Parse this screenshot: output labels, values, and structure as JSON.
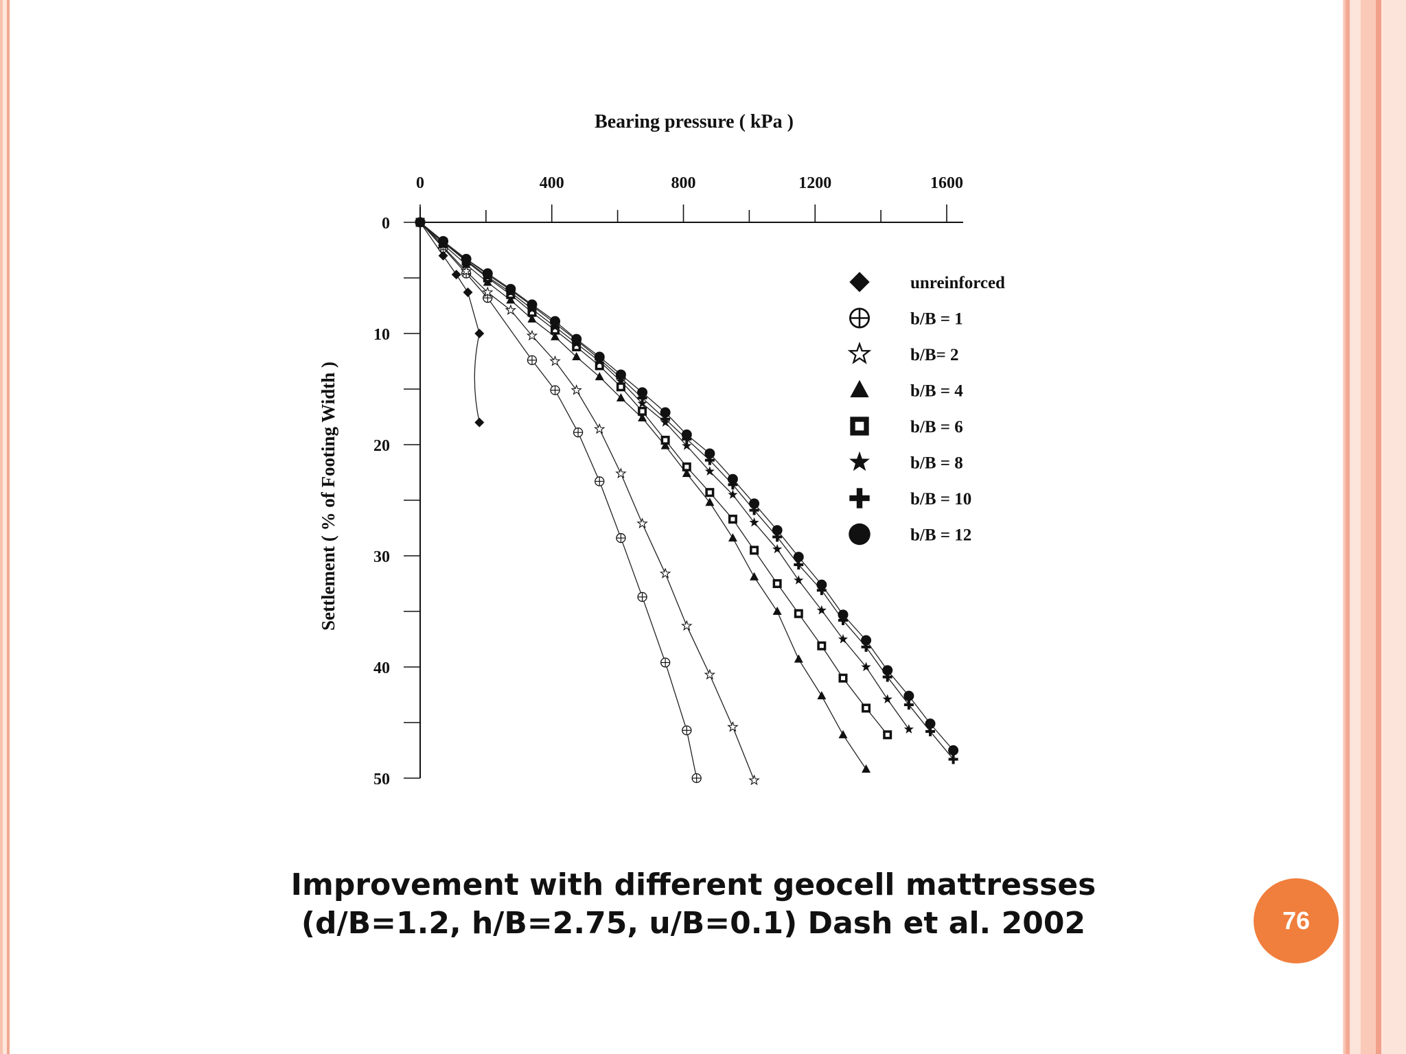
{
  "slide": {
    "page_number": "76"
  },
  "caption": {
    "line1": "Improvement with different geocell mattresses",
    "line2": "(d/B=1.2, h/B=2.75, u/B=0.1) Dash et al. 2002"
  },
  "colors": {
    "accent": "#f07e3c",
    "border": "#f4a892",
    "ink": "#111111"
  },
  "chart_data": {
    "type": "line",
    "title": "Bearing pressure  ( kPa )",
    "xlabel": "Bearing pressure  ( kPa )",
    "ylabel": "Settlement  ( %  of  Footing  Width )",
    "xlim": [
      0,
      1600
    ],
    "ylim": [
      0,
      50
    ],
    "y_inverted": true,
    "x_ticks": [
      0,
      400,
      800,
      1200,
      1600
    ],
    "x_tick_labels": [
      "0",
      "400",
      "800",
      "1200",
      "1600"
    ],
    "y_ticks": [
      0,
      10,
      20,
      30,
      40,
      50
    ],
    "y_tick_labels": [
      "0",
      "10",
      "20",
      "30",
      "40",
      "50"
    ],
    "grid": false,
    "legend_position": "top-right",
    "series": [
      {
        "name": "unreinforced",
        "marker": "diamond",
        "x": [
          0,
          70,
          110,
          145,
          180,
          180
        ],
        "y": [
          0,
          3,
          4.7,
          6.3,
          10,
          18
        ]
      },
      {
        "name": "b/B = 1",
        "marker": "circle-plus",
        "x": [
          0,
          70,
          140,
          205,
          340,
          410,
          480,
          545,
          610,
          675,
          745,
          810,
          840
        ],
        "y": [
          0,
          2.3,
          4.6,
          6.8,
          12.4,
          15.1,
          18.9,
          23.3,
          28.4,
          33.7,
          39.6,
          45.7,
          50
        ]
      },
      {
        "name": "b/B= 2",
        "marker": "star-open",
        "x": [
          0,
          70,
          140,
          205,
          275,
          340,
          410,
          475,
          545,
          610,
          675,
          745,
          810,
          880,
          950,
          1015
        ],
        "y": [
          0,
          2.2,
          4.4,
          6.3,
          7.9,
          10.2,
          12.5,
          15.1,
          18.6,
          22.6,
          27.1,
          31.6,
          36.3,
          40.7,
          45.4,
          50.2
        ]
      },
      {
        "name": "b/B = 4",
        "marker": "triangle",
        "x": [
          0,
          70,
          140,
          205,
          275,
          340,
          410,
          475,
          545,
          610,
          675,
          745,
          810,
          880,
          950,
          1015,
          1085,
          1150,
          1220,
          1285,
          1355
        ],
        "y": [
          0,
          2.0,
          3.8,
          5.4,
          7.0,
          8.7,
          10.3,
          12.1,
          13.9,
          15.8,
          17.6,
          20.1,
          22.6,
          25.2,
          28.4,
          31.9,
          35.0,
          39.3,
          42.6,
          46.1,
          49.2
        ]
      },
      {
        "name": "b/B = 6",
        "marker": "square-open",
        "x": [
          0,
          70,
          140,
          205,
          275,
          340,
          410,
          475,
          545,
          610,
          675,
          745,
          810,
          880,
          950,
          1015,
          1085,
          1150,
          1220,
          1285,
          1355,
          1420
        ],
        "y": [
          0,
          1.8,
          3.5,
          5.0,
          6.5,
          8.1,
          9.7,
          11.2,
          12.9,
          14.8,
          17.0,
          19.6,
          22.0,
          24.3,
          26.7,
          29.5,
          32.5,
          35.2,
          38.1,
          41.0,
          43.7,
          46.1
        ]
      },
      {
        "name": "b/B = 8",
        "marker": "star",
        "x": [
          0,
          70,
          140,
          205,
          275,
          340,
          410,
          475,
          545,
          610,
          675,
          745,
          810,
          880,
          950,
          1015,
          1085,
          1150,
          1220,
          1285,
          1355,
          1420,
          1485
        ],
        "y": [
          0,
          1.8,
          3.4,
          4.9,
          6.3,
          7.8,
          9.4,
          10.9,
          12.5,
          14.3,
          16.3,
          18.0,
          20.1,
          22.4,
          24.5,
          27.0,
          29.4,
          32.2,
          34.9,
          37.5,
          40.0,
          42.9,
          45.6
        ]
      },
      {
        "name": "b/B = 10",
        "marker": "plus",
        "x": [
          0,
          70,
          140,
          205,
          275,
          340,
          410,
          475,
          545,
          610,
          675,
          745,
          810,
          880,
          950,
          1015,
          1085,
          1150,
          1220,
          1285,
          1355,
          1420,
          1485,
          1550,
          1620
        ],
        "y": [
          0,
          1.7,
          3.3,
          4.7,
          6.1,
          7.5,
          9.1,
          10.6,
          12.3,
          14.0,
          15.8,
          17.7,
          19.5,
          21.4,
          23.6,
          25.9,
          28.3,
          30.8,
          33.1,
          35.8,
          38.2,
          40.9,
          43.4,
          45.8,
          48.3
        ]
      },
      {
        "name": "b/B = 12",
        "marker": "circle",
        "x": [
          0,
          70,
          140,
          205,
          275,
          340,
          410,
          475,
          545,
          610,
          675,
          745,
          810,
          880,
          950,
          1015,
          1085,
          1150,
          1220,
          1285,
          1355,
          1420,
          1485,
          1550,
          1620
        ],
        "y": [
          0,
          1.7,
          3.3,
          4.6,
          6.0,
          7.4,
          8.9,
          10.5,
          12.1,
          13.7,
          15.3,
          17.1,
          19.1,
          20.8,
          23.1,
          25.3,
          27.7,
          30.1,
          32.6,
          35.3,
          37.6,
          40.3,
          42.6,
          45.1,
          47.5
        ]
      }
    ]
  }
}
